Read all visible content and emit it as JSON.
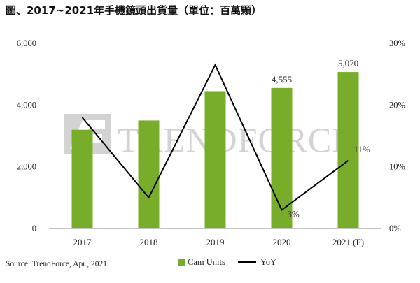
{
  "title": "圖、2017~2021年手機鏡頭出貨量（單位：百萬顆）",
  "source": "Source: TrendForce, Apr., 2021",
  "watermark": "TRENDFORCE",
  "colors": {
    "bar": "#78ad2a",
    "line": "#000000",
    "axis": "#888888",
    "watermark": "#d3d3d3"
  },
  "chart_data": {
    "type": "bar",
    "categories": [
      "2017",
      "2018",
      "2019",
      "2020",
      "2021 (F)"
    ],
    "series": [
      {
        "name": "Cam Units",
        "type": "bar",
        "axis": "left",
        "values": [
          3200,
          3500,
          4450,
          4555,
          5070
        ]
      },
      {
        "name": "YoY",
        "type": "line",
        "axis": "right",
        "values": [
          18,
          5,
          26.5,
          3,
          11
        ]
      }
    ],
    "bar_data_labels": [
      "",
      "",
      "",
      "4,555",
      "5,070"
    ],
    "line_data_labels": [
      "",
      "",
      "",
      "3%",
      "11%"
    ],
    "ylim_left": [
      0,
      6000
    ],
    "yticks_left": [
      "0",
      "2,000",
      "4,000",
      "6,000"
    ],
    "ylim_right": [
      0,
      30
    ],
    "yticks_right": [
      "0%",
      "10%",
      "20%",
      "30%"
    ],
    "grid": false,
    "legend_position": "bottom"
  }
}
